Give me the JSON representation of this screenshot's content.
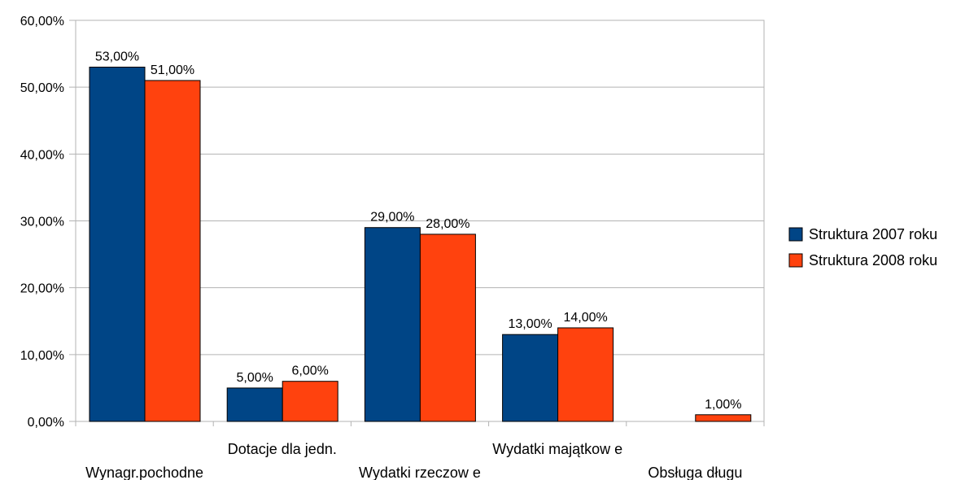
{
  "chart_data": {
    "type": "bar",
    "categories": [
      "Wynagr.pochodne",
      "Dotacje dla jedn.",
      "Wydatki rzeczow e",
      "Wydatki majątkow e",
      "Obsługa długu"
    ],
    "series": [
      {
        "name": "Struktura 2007 roku",
        "color": "#004586",
        "values": [
          53,
          5,
          29,
          13,
          null
        ],
        "labels": [
          "53,00%",
          "5,00%",
          "29,00%",
          "13,00%",
          ""
        ]
      },
      {
        "name": "Struktura 2008 roku",
        "color": "#ff420e",
        "values": [
          51,
          6,
          28,
          14,
          1
        ],
        "labels": [
          "51,00%",
          "6,00%",
          "28,00%",
          "14,00%",
          "1,00%"
        ]
      }
    ],
    "ylim": [
      0,
      60
    ],
    "yticks": [
      0,
      10,
      20,
      30,
      40,
      50,
      60
    ],
    "ytick_labels": [
      "0,00%",
      "10,00%",
      "20,00%",
      "30,00%",
      "40,00%",
      "50,00%",
      "60,00%"
    ],
    "grid": true,
    "legend_position": "right"
  }
}
